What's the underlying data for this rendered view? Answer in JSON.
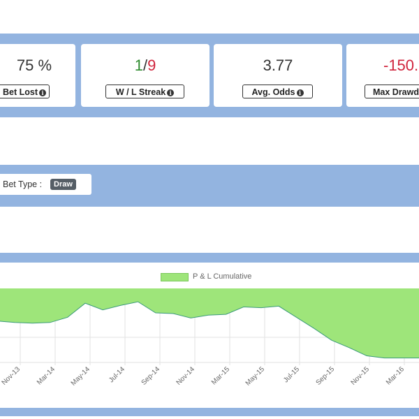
{
  "stats": [
    {
      "value": "75 %",
      "label": "Bet Lost"
    },
    {
      "value_a": "1",
      "sep": "/",
      "value_b": "9",
      "label": "W / L Streak"
    },
    {
      "value": "3.77",
      "label": "Avg. Odds"
    },
    {
      "value": "-150.",
      "label": "Max Drawd"
    }
  ],
  "filter": {
    "label": "Bet Type :",
    "badge": "Draw"
  },
  "colors": {
    "band": "#93b4e0",
    "fill": "#9ee57a",
    "line": "#3a9a7a",
    "positive": "#2e8b2e",
    "negative": "#d0243c"
  },
  "chart_data": {
    "type": "area",
    "legend": [
      "P & L Cumulative"
    ],
    "legend_position": "top",
    "x_tick_labels": [
      "Nov-13",
      "Mar-14",
      "May-14",
      "Jul-14",
      "Sep-14",
      "Nov-14",
      "Mar-15",
      "May-15",
      "Jul-15",
      "Sep-15",
      "Nov-15",
      "Mar-16"
    ],
    "ylim": [
      0,
      10
    ],
    "grid": true,
    "series": [
      {
        "name": "P & L Cumulative",
        "values": [
          5.6,
          5.4,
          5.3,
          5.4,
          6.1,
          8.0,
          7.1,
          7.7,
          8.2,
          6.7,
          6.6,
          6.0,
          6.4,
          6.5,
          7.5,
          7.4,
          7.6,
          6.1,
          4.6,
          3.0,
          2.0,
          0.9,
          0.6,
          0.6,
          0.6,
          1.1
        ]
      }
    ]
  }
}
